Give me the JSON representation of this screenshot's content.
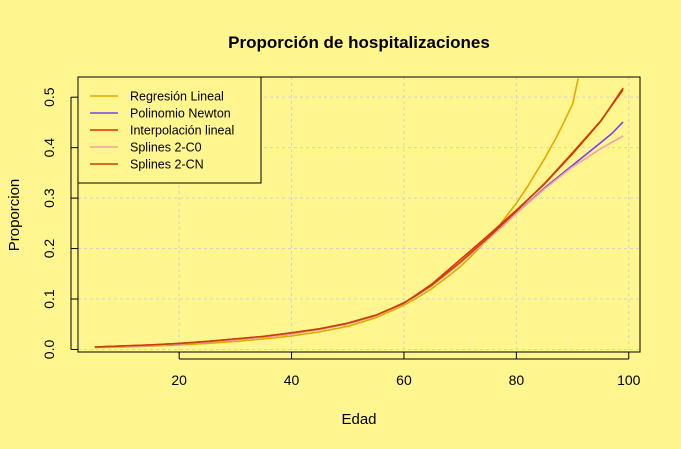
{
  "chart_data": {
    "type": "line",
    "title": "Proporción de hospitalizaciones",
    "xlabel": "Edad",
    "ylabel": "Proporcion",
    "xlim": [
      2,
      102
    ],
    "ylim": [
      -0.005,
      0.54
    ],
    "x_ticks": [
      20,
      40,
      60,
      80,
      100
    ],
    "y_ticks": [
      0.0,
      0.1,
      0.2,
      0.3,
      0.4,
      0.5
    ],
    "grid": true,
    "legend_position": "top-left",
    "background": "#FFF68F",
    "series": [
      {
        "name": "Regresión Lineal",
        "color": "#E6A800",
        "x": [
          5,
          10,
          15,
          20,
          25,
          30,
          35,
          40,
          45,
          50,
          55,
          60,
          62,
          65,
          68,
          70,
          72,
          75,
          77,
          80,
          82,
          85,
          87,
          88,
          90,
          91
        ],
        "y": [
          0.004,
          0.005,
          0.007,
          0.009,
          0.012,
          0.016,
          0.021,
          0.027,
          0.035,
          0.046,
          0.063,
          0.088,
          0.1,
          0.121,
          0.146,
          0.164,
          0.185,
          0.22,
          0.246,
          0.29,
          0.323,
          0.378,
          0.418,
          0.44,
          0.486,
          0.537
        ]
      },
      {
        "name": "Polinomio Newton",
        "color": "#7B3FF2",
        "x": [
          5,
          10,
          15,
          20,
          25,
          30,
          35,
          40,
          45,
          50,
          55,
          60,
          62,
          65,
          68,
          70,
          72,
          75,
          78,
          80,
          82,
          85,
          88,
          90,
          92,
          95,
          97,
          99
        ],
        "y": [
          0.005,
          0.006,
          0.008,
          0.011,
          0.015,
          0.02,
          0.025,
          0.031,
          0.04,
          0.051,
          0.067,
          0.093,
          0.105,
          0.127,
          0.153,
          0.172,
          0.191,
          0.22,
          0.249,
          0.27,
          0.29,
          0.32,
          0.347,
          0.365,
          0.383,
          0.41,
          0.428,
          0.451
        ]
      },
      {
        "name": "Interpolación lineal",
        "color": "#E62E00",
        "x": [
          5,
          10,
          15,
          20,
          25,
          30,
          35,
          40,
          45,
          50,
          55,
          60,
          65,
          70,
          75,
          80,
          85,
          90,
          95,
          99
        ],
        "y": [
          0.005,
          0.007,
          0.009,
          0.012,
          0.016,
          0.021,
          0.026,
          0.033,
          0.041,
          0.052,
          0.068,
          0.092,
          0.13,
          0.178,
          0.226,
          0.276,
          0.328,
          0.388,
          0.452,
          0.518
        ]
      },
      {
        "name": "Splines 2-C0",
        "color": "#F5A0A0",
        "x": [
          5,
          10,
          15,
          20,
          25,
          30,
          35,
          40,
          45,
          50,
          55,
          60,
          65,
          70,
          75,
          80,
          85,
          90,
          95,
          99
        ],
        "y": [
          0.005,
          0.006,
          0.008,
          0.011,
          0.015,
          0.02,
          0.025,
          0.031,
          0.04,
          0.051,
          0.067,
          0.092,
          0.127,
          0.171,
          0.219,
          0.27,
          0.318,
          0.362,
          0.398,
          0.423
        ]
      },
      {
        "name": "Splines 2-CN",
        "color": "#C8400A",
        "x": [
          5,
          10,
          15,
          20,
          25,
          30,
          35,
          40,
          45,
          50,
          55,
          60,
          65,
          70,
          75,
          80,
          85,
          90,
          95,
          99
        ],
        "y": [
          0.005,
          0.007,
          0.009,
          0.012,
          0.016,
          0.021,
          0.026,
          0.033,
          0.041,
          0.052,
          0.068,
          0.092,
          0.128,
          0.173,
          0.222,
          0.274,
          0.329,
          0.39,
          0.453,
          0.515
        ]
      }
    ]
  }
}
